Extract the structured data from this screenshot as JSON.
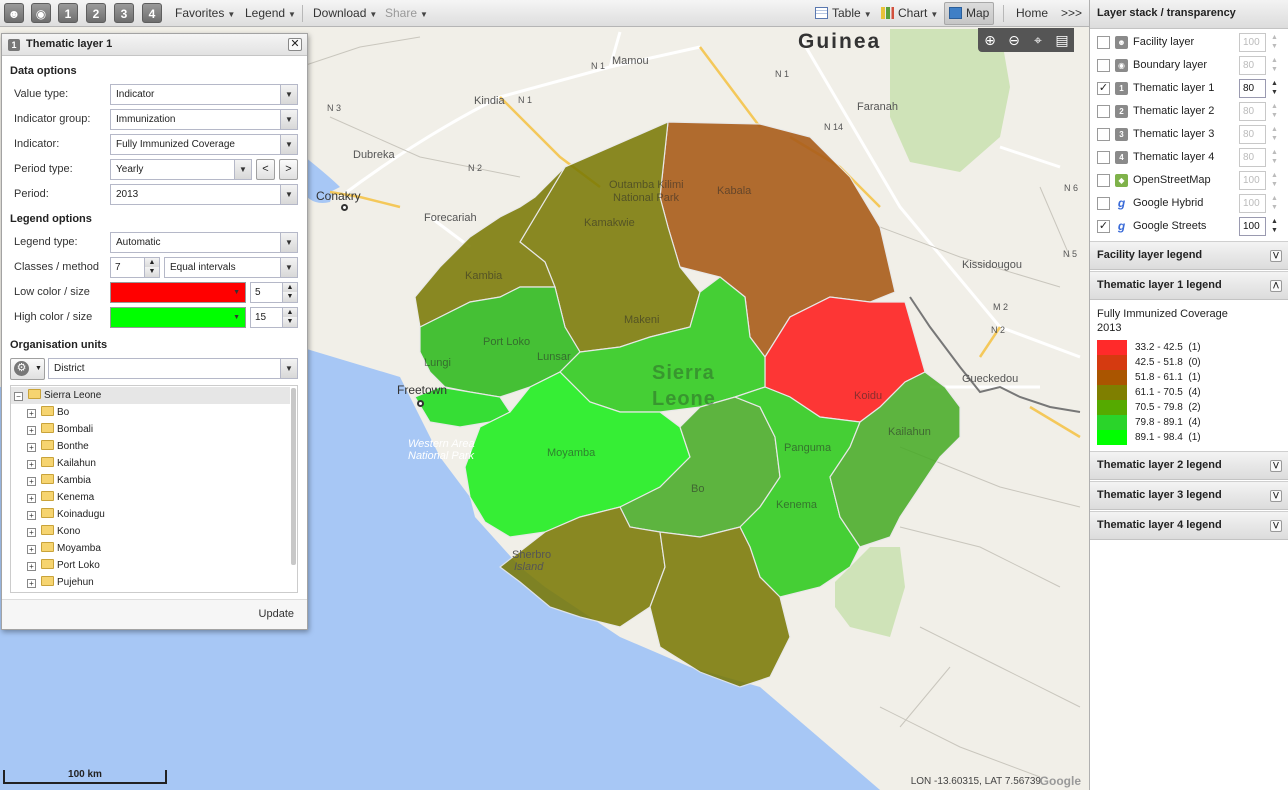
{
  "toolbar": {
    "favorites": "Favorites",
    "legend": "Legend",
    "download": "Download",
    "share": "Share",
    "table": "Table",
    "chart": "Chart",
    "map": "Map",
    "home": "Home",
    "more": ">>>",
    "layer_buttons": [
      "1",
      "2",
      "3",
      "4"
    ]
  },
  "map": {
    "country_label": "Guinea",
    "main_label_1": "Sierra",
    "main_label_2": "Leone",
    "cities": {
      "conakry": "Conakry",
      "freetown": "Freetown",
      "kindia": "Kindia",
      "mamou": "Mamou",
      "dubreka": "Dubreka",
      "forecariah": "Forecariah",
      "faranah": "Faranah",
      "kissidougou": "Kissidougou",
      "gueckedou": "Gueckedou"
    },
    "districts": {
      "kambia": "Kambia",
      "port_loko": "Port Loko",
      "bombali": "Makeni",
      "koinadugu": "Kabala",
      "kono": "Koidu",
      "kailahun": "Kailahun",
      "kenema": "Kenema",
      "bo": "Bo",
      "moyamba": "Moyamba",
      "lunsar": "Lunsar",
      "kamakwie": "Kamakwie",
      "pangum": "Panguma",
      "lungi": "Lungi"
    },
    "park_1": "Outamba Kilimi",
    "park_2": "National Park",
    "wa_1": "Western Area",
    "wa_2": "National Park",
    "sherbro_1": "Sherbro",
    "sherbro_2": "Island",
    "roads": [
      "N 1",
      "N 3",
      "N 1",
      "N 2",
      "N 14",
      "N 6",
      "M 2",
      "N 2",
      "N 1",
      "N 5"
    ],
    "scale": "100 km",
    "coords": "LON -13.60315, LAT 7.56739",
    "google": "Google"
  },
  "thematic_panel": {
    "number": "1",
    "title": "Thematic layer 1",
    "data_options": "Data options",
    "value_type_label": "Value type:",
    "value_type": "Indicator",
    "indicator_group_label": "Indicator group:",
    "indicator_group": "Immunization",
    "indicator_label": "Indicator:",
    "indicator": "Fully Immunized Coverage",
    "period_type_label": "Period type:",
    "period_type": "Yearly",
    "prev": "<",
    "next": ">",
    "period_label": "Period:",
    "period": "2013",
    "legend_options": "Legend options",
    "legend_type_label": "Legend type:",
    "legend_type": "Automatic",
    "classes_label": "Classes / method",
    "classes": "7",
    "method": "Equal intervals",
    "low_label": "Low color / size",
    "low_color": "#ff0000",
    "low_size": "5",
    "high_label": "High color / size",
    "high_color": "#00ff00",
    "high_size": "15",
    "org_units": "Organisation units",
    "level": "District",
    "tree_root": "Sierra Leone",
    "tree_items": [
      "Bo",
      "Bombali",
      "Bonthe",
      "Kailahun",
      "Kambia",
      "Kenema",
      "Koinadugu",
      "Kono",
      "Moyamba",
      "Port Loko",
      "Pujehun"
    ],
    "update": "Update"
  },
  "right_panel": {
    "layer_stack_title": "Layer stack / transparency",
    "layers": [
      {
        "name": "Facility layer",
        "icon": "F",
        "checked": false,
        "opacity": "100"
      },
      {
        "name": "Boundary layer",
        "icon": "B",
        "checked": false,
        "opacity": "80"
      },
      {
        "name": "Thematic layer 1",
        "icon": "1",
        "checked": true,
        "opacity": "80"
      },
      {
        "name": "Thematic layer 2",
        "icon": "2",
        "checked": false,
        "opacity": "80"
      },
      {
        "name": "Thematic layer 3",
        "icon": "3",
        "checked": false,
        "opacity": "80"
      },
      {
        "name": "Thematic layer 4",
        "icon": "4",
        "checked": false,
        "opacity": "80"
      },
      {
        "name": "OpenStreetMap",
        "icon": "osm",
        "checked": false,
        "opacity": "100"
      },
      {
        "name": "Google Hybrid",
        "icon": "g",
        "checked": false,
        "opacity": "100"
      },
      {
        "name": "Google Streets",
        "icon": "g",
        "checked": true,
        "opacity": "100"
      }
    ],
    "facility_legend": "Facility layer legend",
    "thematic1_legend": "Thematic layer 1 legend",
    "legend_indicator": "Fully Immunized Coverage",
    "legend_period": "2013",
    "legend_classes": [
      {
        "range": "33.2 - 42.5",
        "count": "(1)",
        "color": "#ff2a2a"
      },
      {
        "range": "42.5 - 51.8",
        "count": "(0)",
        "color": "#d53a10"
      },
      {
        "range": "51.8 - 61.1",
        "count": "(1)",
        "color": "#aa5500"
      },
      {
        "range": "61.1 - 70.5",
        "count": "(4)",
        "color": "#7f7f00"
      },
      {
        "range": "70.5 - 79.8",
        "count": "(2)",
        "color": "#55aa00"
      },
      {
        "range": "79.8 - 89.1",
        "count": "(4)",
        "color": "#2ad42a"
      },
      {
        "range": "89.1 - 98.4",
        "count": "(1)",
        "color": "#00ff00"
      }
    ],
    "thematic2_legend": "Thematic layer 2 legend",
    "thematic3_legend": "Thematic layer 3 legend",
    "thematic4_legend": "Thematic layer 4 legend"
  }
}
